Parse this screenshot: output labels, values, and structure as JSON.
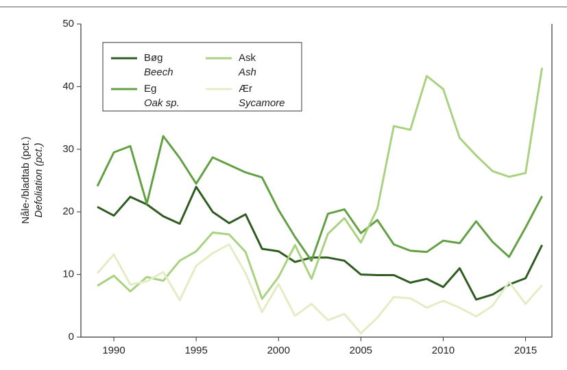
{
  "chart_data": {
    "type": "line",
    "ylabel": "Nåle-/bladtab (pct.)",
    "ylabel2": "Defoliation (pct.)",
    "x": [
      1989,
      1990,
      1991,
      1992,
      1993,
      1994,
      1995,
      1996,
      1997,
      1998,
      1999,
      2000,
      2001,
      2002,
      2003,
      2004,
      2005,
      2006,
      2007,
      2008,
      2009,
      2010,
      2011,
      2012,
      2013,
      2014,
      2015,
      2016
    ],
    "series": [
      {
        "name": "Bøg",
        "name_latin": "Beech",
        "color": "#2e5b1f",
        "values": [
          20.8,
          19.4,
          22.4,
          21.2,
          19.3,
          18.1,
          24.0,
          20.0,
          18.2,
          19.6,
          14.1,
          13.7,
          12.0,
          12.7,
          12.7,
          12.2,
          10.0,
          9.9,
          9.9,
          8.7,
          9.3,
          8.0,
          11.0,
          6.0,
          6.8,
          8.4,
          9.4,
          14.7
        ]
      },
      {
        "name": "Eg",
        "name_latin": "Oak sp.",
        "color": "#62a043",
        "values": [
          24.1,
          29.5,
          30.5,
          21.3,
          32.1,
          28.6,
          24.5,
          28.7,
          27.5,
          26.3,
          25.5,
          20.3,
          16.0,
          12.2,
          19.7,
          20.4,
          16.6,
          18.7,
          14.8,
          13.8,
          13.6,
          15.4,
          15.0,
          18.5,
          15.2,
          12.8,
          17.5,
          22.5
        ]
      },
      {
        "name": "Ask",
        "name_latin": "Ash",
        "color": "#a8d280",
        "values": [
          8.2,
          9.8,
          7.3,
          9.6,
          9.0,
          12.2,
          13.7,
          16.7,
          16.4,
          13.6,
          6.1,
          9.6,
          14.7,
          9.3,
          16.5,
          19.0,
          15.1,
          20.5,
          33.7,
          33.1,
          41.7,
          39.6,
          31.8,
          29.0,
          26.5,
          25.6,
          26.2,
          43.0
        ]
      },
      {
        "name": "Ær",
        "name_latin": "Sycamore",
        "color": "#e2edc4",
        "values": [
          10.2,
          13.2,
          8.4,
          8.9,
          10.4,
          5.9,
          11.4,
          13.4,
          14.8,
          10.2,
          4.0,
          8.5,
          3.4,
          5.3,
          2.7,
          3.7,
          0.6,
          3.1,
          6.4,
          6.2,
          4.7,
          5.8,
          4.7,
          3.3,
          5.0,
          8.8,
          5.3,
          8.3
        ]
      }
    ],
    "xlim": [
      1988,
      2016.6
    ],
    "xticks": [
      1990,
      1995,
      2000,
      2005,
      2010,
      2015
    ],
    "ylim": [
      0,
      50
    ],
    "yticks": [
      0,
      10,
      20,
      30,
      40,
      50
    ],
    "legend": "upper left"
  }
}
